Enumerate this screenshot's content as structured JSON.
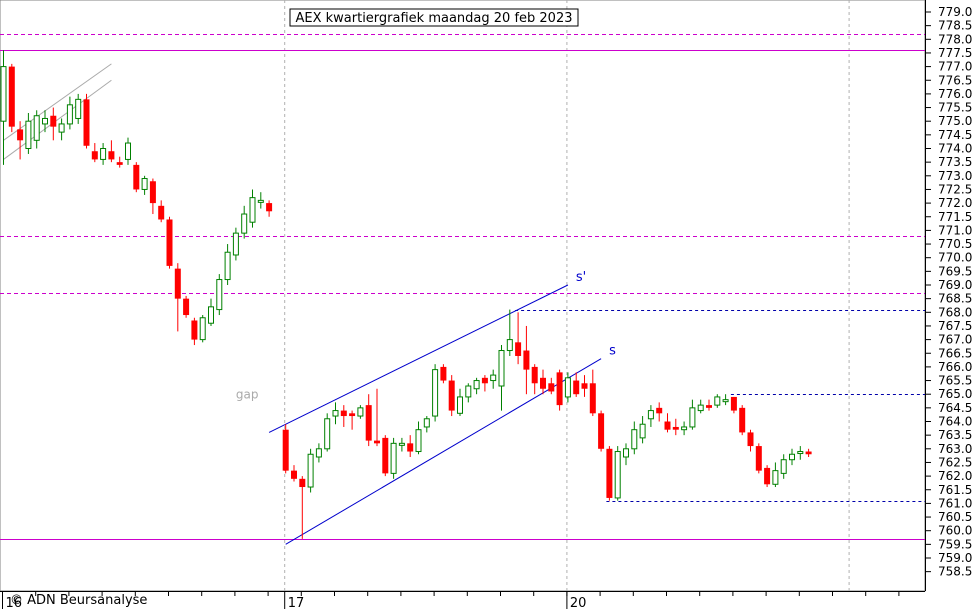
{
  "chart_data": {
    "type": "candlestick",
    "title": "AEX kwartiergrafiek maandag 20 feb 2023",
    "watermark": "© ADN Beursanalyse",
    "ylim": [
      758.0,
      779.5
    ],
    "y_ticks": [
      "779.0",
      "778.5",
      "778.0",
      "777.5",
      "777.0",
      "776.5",
      "776.0",
      "775.5",
      "775.0",
      "774.5",
      "774.0",
      "773.5",
      "773.0",
      "772.5",
      "772.0",
      "771.5",
      "771.0",
      "770.5",
      "770.0",
      "769.5",
      "769.0",
      "768.5",
      "768.0",
      "767.5",
      "767.0",
      "766.5",
      "766.0",
      "765.5",
      "765.0",
      "764.5",
      "764.0",
      "763.5",
      "763.0",
      "762.5",
      "762.0",
      "761.5",
      "761.0",
      "760.5",
      "760.0",
      "759.5",
      "759.0",
      "758.5"
    ],
    "x_labels": [
      {
        "label": "16",
        "index": 0
      },
      {
        "label": "17",
        "index": 34
      },
      {
        "label": "20",
        "index": 68
      }
    ],
    "up_color": "#008000",
    "down_color": "#ff0000",
    "horizontal_levels": [
      {
        "value": 777.6,
        "style": "solid",
        "color": "#cc00cc"
      },
      {
        "value": 759.7,
        "style": "solid",
        "color": "#cc00cc"
      },
      {
        "value": 778.2,
        "style": "dashed",
        "color": "#cc00cc"
      },
      {
        "value": 770.8,
        "style": "dashed",
        "color": "#cc00cc"
      },
      {
        "value": 768.7,
        "style": "dashed",
        "color": "#cc00cc"
      }
    ],
    "partial_levels": [
      {
        "value": 768.1,
        "from_index": 62,
        "color": "#0000aa"
      },
      {
        "value": 765.0,
        "from_index": 88,
        "color": "#0000aa"
      },
      {
        "value": 761.1,
        "from_index": 73,
        "color": "#0000aa"
      }
    ],
    "trendlines": [
      {
        "from": [
          0,
          773.6
        ],
        "to": [
          13,
          776.5
        ],
        "color": "#aaaaaa"
      },
      {
        "from": [
          0,
          774.3
        ],
        "to": [
          13,
          777.1
        ],
        "color": "#aaaaaa"
      },
      {
        "from": [
          32,
          763.6
        ],
        "to": [
          68,
          769.0
        ],
        "color": "#0000cc",
        "label": "s'"
      },
      {
        "from": [
          34,
          759.5
        ],
        "to": [
          72,
          766.3
        ],
        "color": "#0000cc",
        "label": "s"
      }
    ],
    "annotations": [
      {
        "text": "gap",
        "index": 28,
        "value": 765.2,
        "color": "#aaaaaa"
      }
    ],
    "candles": [
      {
        "i": 0,
        "o": 775.0,
        "h": 777.6,
        "l": 773.4,
        "c": 777.0
      },
      {
        "i": 1,
        "o": 777.0,
        "h": 777.1,
        "l": 774.6,
        "c": 774.8
      },
      {
        "i": 2,
        "o": 774.7,
        "h": 775.0,
        "l": 773.6,
        "c": 774.3
      },
      {
        "i": 3,
        "o": 774.0,
        "h": 775.3,
        "l": 773.8,
        "c": 775.0
      },
      {
        "i": 4,
        "o": 774.3,
        "h": 775.4,
        "l": 774.0,
        "c": 775.2
      },
      {
        "i": 5,
        "o": 774.9,
        "h": 775.4,
        "l": 774.6,
        "c": 775.1
      },
      {
        "i": 6,
        "o": 775.2,
        "h": 775.5,
        "l": 774.3,
        "c": 774.8
      },
      {
        "i": 7,
        "o": 774.6,
        "h": 775.1,
        "l": 774.3,
        "c": 774.9
      },
      {
        "i": 8,
        "o": 774.9,
        "h": 775.9,
        "l": 774.7,
        "c": 775.6
      },
      {
        "i": 9,
        "o": 775.1,
        "h": 776.0,
        "l": 774.9,
        "c": 775.8
      },
      {
        "i": 10,
        "o": 775.8,
        "h": 776.0,
        "l": 774.0,
        "c": 774.1
      },
      {
        "i": 11,
        "o": 773.9,
        "h": 774.2,
        "l": 773.5,
        "c": 773.6
      },
      {
        "i": 12,
        "o": 773.6,
        "h": 774.2,
        "l": 773.4,
        "c": 774.0
      },
      {
        "i": 13,
        "o": 773.9,
        "h": 774.3,
        "l": 773.5,
        "c": 773.6
      },
      {
        "i": 14,
        "o": 773.5,
        "h": 773.7,
        "l": 773.3,
        "c": 773.4
      },
      {
        "i": 15,
        "o": 773.6,
        "h": 774.4,
        "l": 773.4,
        "c": 774.2
      },
      {
        "i": 16,
        "o": 773.4,
        "h": 773.5,
        "l": 772.4,
        "c": 772.5
      },
      {
        "i": 17,
        "o": 772.5,
        "h": 773.0,
        "l": 772.3,
        "c": 772.9
      },
      {
        "i": 18,
        "o": 772.8,
        "h": 772.9,
        "l": 771.6,
        "c": 772.0
      },
      {
        "i": 19,
        "o": 771.9,
        "h": 772.1,
        "l": 771.3,
        "c": 771.4
      },
      {
        "i": 20,
        "o": 771.4,
        "h": 771.5,
        "l": 769.6,
        "c": 769.7
      },
      {
        "i": 21,
        "o": 769.6,
        "h": 769.8,
        "l": 767.3,
        "c": 768.5
      },
      {
        "i": 22,
        "o": 768.5,
        "h": 768.6,
        "l": 767.8,
        "c": 767.9
      },
      {
        "i": 23,
        "o": 767.7,
        "h": 767.8,
        "l": 766.8,
        "c": 767.0
      },
      {
        "i": 24,
        "o": 767.0,
        "h": 767.9,
        "l": 766.9,
        "c": 767.8
      },
      {
        "i": 25,
        "o": 767.6,
        "h": 768.5,
        "l": 767.5,
        "c": 768.2
      },
      {
        "i": 26,
        "o": 768.1,
        "h": 769.4,
        "l": 767.9,
        "c": 769.2
      },
      {
        "i": 27,
        "o": 769.2,
        "h": 770.5,
        "l": 769.0,
        "c": 770.2
      },
      {
        "i": 28,
        "o": 770.1,
        "h": 771.1,
        "l": 769.9,
        "c": 770.9
      },
      {
        "i": 29,
        "o": 770.9,
        "h": 771.9,
        "l": 770.7,
        "c": 771.6
      },
      {
        "i": 30,
        "o": 771.3,
        "h": 772.5,
        "l": 771.1,
        "c": 772.2
      },
      {
        "i": 31,
        "o": 772.1,
        "h": 772.4,
        "l": 771.8,
        "c": 772.1
      },
      {
        "i": 32,
        "o": 772.0,
        "h": 772.1,
        "l": 771.5,
        "c": 771.7
      },
      {
        "i": 34,
        "o": 763.7,
        "h": 763.9,
        "l": 762.1,
        "c": 762.2
      },
      {
        "i": 35,
        "o": 762.2,
        "h": 762.4,
        "l": 761.8,
        "c": 761.9
      },
      {
        "i": 36,
        "o": 761.9,
        "h": 762.0,
        "l": 759.7,
        "c": 761.6
      },
      {
        "i": 37,
        "o": 761.6,
        "h": 763.0,
        "l": 761.4,
        "c": 762.8
      },
      {
        "i": 38,
        "o": 762.7,
        "h": 763.2,
        "l": 762.5,
        "c": 763.0
      },
      {
        "i": 39,
        "o": 763.0,
        "h": 764.3,
        "l": 762.9,
        "c": 764.1
      },
      {
        "i": 40,
        "o": 764.2,
        "h": 764.7,
        "l": 763.9,
        "c": 764.4
      },
      {
        "i": 41,
        "o": 764.4,
        "h": 764.6,
        "l": 763.8,
        "c": 764.2
      },
      {
        "i": 42,
        "o": 764.3,
        "h": 764.4,
        "l": 763.7,
        "c": 764.2
      },
      {
        "i": 43,
        "o": 764.2,
        "h": 764.6,
        "l": 764.1,
        "c": 764.5
      },
      {
        "i": 44,
        "o": 764.6,
        "h": 765.0,
        "l": 763.1,
        "c": 763.3
      },
      {
        "i": 45,
        "o": 763.3,
        "h": 765.2,
        "l": 763.1,
        "c": 763.2
      },
      {
        "i": 46,
        "o": 763.4,
        "h": 763.5,
        "l": 762.0,
        "c": 762.1
      },
      {
        "i": 47,
        "o": 762.1,
        "h": 763.4,
        "l": 761.9,
        "c": 763.2
      },
      {
        "i": 48,
        "o": 763.2,
        "h": 763.4,
        "l": 762.9,
        "c": 763.2
      },
      {
        "i": 49,
        "o": 763.2,
        "h": 763.5,
        "l": 762.7,
        "c": 762.9
      },
      {
        "i": 50,
        "o": 762.9,
        "h": 764.0,
        "l": 762.8,
        "c": 763.7
      },
      {
        "i": 51,
        "o": 763.8,
        "h": 764.2,
        "l": 763.6,
        "c": 764.1
      },
      {
        "i": 52,
        "o": 764.2,
        "h": 766.1,
        "l": 764.0,
        "c": 765.9
      },
      {
        "i": 53,
        "o": 766.0,
        "h": 766.1,
        "l": 765.4,
        "c": 765.5
      },
      {
        "i": 54,
        "o": 765.5,
        "h": 765.7,
        "l": 764.2,
        "c": 764.4
      },
      {
        "i": 55,
        "o": 764.3,
        "h": 765.2,
        "l": 764.2,
        "c": 764.9
      },
      {
        "i": 56,
        "o": 764.9,
        "h": 765.4,
        "l": 764.7,
        "c": 765.3
      },
      {
        "i": 57,
        "o": 765.2,
        "h": 765.6,
        "l": 765.0,
        "c": 765.5
      },
      {
        "i": 58,
        "o": 765.6,
        "h": 765.7,
        "l": 765.1,
        "c": 765.4
      },
      {
        "i": 59,
        "o": 765.5,
        "h": 765.9,
        "l": 765.2,
        "c": 765.7
      },
      {
        "i": 60,
        "o": 765.3,
        "h": 766.8,
        "l": 764.4,
        "c": 766.6
      },
      {
        "i": 61,
        "o": 766.6,
        "h": 768.1,
        "l": 766.4,
        "c": 767.0
      },
      {
        "i": 62,
        "o": 766.9,
        "h": 768.0,
        "l": 766.1,
        "c": 766.4
      },
      {
        "i": 63,
        "o": 766.6,
        "h": 767.5,
        "l": 765.0,
        "c": 765.9
      },
      {
        "i": 64,
        "o": 766.0,
        "h": 766.1,
        "l": 765.0,
        "c": 765.4
      },
      {
        "i": 65,
        "o": 765.6,
        "h": 765.9,
        "l": 765.0,
        "c": 765.2
      },
      {
        "i": 66,
        "o": 765.4,
        "h": 765.6,
        "l": 765.0,
        "c": 765.1
      },
      {
        "i": 67,
        "o": 765.8,
        "h": 765.9,
        "l": 764.4,
        "c": 764.6
      },
      {
        "i": 68,
        "o": 764.9,
        "h": 765.8,
        "l": 764.7,
        "c": 765.6
      },
      {
        "i": 69,
        "o": 765.5,
        "h": 765.8,
        "l": 764.9,
        "c": 765.0
      },
      {
        "i": 70,
        "o": 765.4,
        "h": 765.7,
        "l": 764.9,
        "c": 765.2
      },
      {
        "i": 71,
        "o": 765.4,
        "h": 765.9,
        "l": 764.2,
        "c": 764.3
      },
      {
        "i": 72,
        "o": 764.3,
        "h": 764.4,
        "l": 762.9,
        "c": 763.0
      },
      {
        "i": 73,
        "o": 763.0,
        "h": 763.1,
        "l": 761.1,
        "c": 761.2
      },
      {
        "i": 74,
        "o": 761.2,
        "h": 763.1,
        "l": 761.1,
        "c": 762.9
      },
      {
        "i": 75,
        "o": 762.7,
        "h": 763.2,
        "l": 762.4,
        "c": 763.0
      },
      {
        "i": 76,
        "o": 763.0,
        "h": 764.0,
        "l": 762.8,
        "c": 763.7
      },
      {
        "i": 77,
        "o": 763.4,
        "h": 764.2,
        "l": 763.2,
        "c": 763.9
      },
      {
        "i": 78,
        "o": 764.1,
        "h": 764.6,
        "l": 763.8,
        "c": 764.4
      },
      {
        "i": 79,
        "o": 764.5,
        "h": 764.7,
        "l": 764.0,
        "c": 764.3
      },
      {
        "i": 80,
        "o": 764.0,
        "h": 764.3,
        "l": 763.6,
        "c": 763.7
      },
      {
        "i": 81,
        "o": 763.8,
        "h": 764.1,
        "l": 763.5,
        "c": 763.7
      },
      {
        "i": 82,
        "o": 763.7,
        "h": 764.0,
        "l": 763.5,
        "c": 763.8
      },
      {
        "i": 83,
        "o": 763.8,
        "h": 764.8,
        "l": 763.7,
        "c": 764.5
      },
      {
        "i": 84,
        "o": 764.4,
        "h": 764.8,
        "l": 764.3,
        "c": 764.6
      },
      {
        "i": 85,
        "o": 764.6,
        "h": 764.8,
        "l": 764.4,
        "c": 764.5
      },
      {
        "i": 86,
        "o": 764.6,
        "h": 765.0,
        "l": 764.5,
        "c": 764.9
      },
      {
        "i": 87,
        "o": 764.8,
        "h": 765.0,
        "l": 764.6,
        "c": 764.8
      },
      {
        "i": 88,
        "o": 764.9,
        "h": 764.9,
        "l": 764.3,
        "c": 764.4
      },
      {
        "i": 89,
        "o": 764.5,
        "h": 764.6,
        "l": 763.5,
        "c": 763.6
      },
      {
        "i": 90,
        "o": 763.6,
        "h": 763.7,
        "l": 762.9,
        "c": 763.1
      },
      {
        "i": 91,
        "o": 763.1,
        "h": 763.2,
        "l": 762.1,
        "c": 762.2
      },
      {
        "i": 92,
        "o": 762.3,
        "h": 762.4,
        "l": 761.6,
        "c": 761.7
      },
      {
        "i": 93,
        "o": 761.7,
        "h": 762.5,
        "l": 761.6,
        "c": 762.2
      },
      {
        "i": 94,
        "o": 762.1,
        "h": 762.8,
        "l": 761.9,
        "c": 762.6
      },
      {
        "i": 95,
        "o": 762.6,
        "h": 763.0,
        "l": 762.4,
        "c": 762.8
      },
      {
        "i": 96,
        "o": 762.9,
        "h": 763.1,
        "l": 762.6,
        "c": 762.9
      },
      {
        "i": 97,
        "o": 762.9,
        "h": 763.0,
        "l": 762.7,
        "c": 762.8
      }
    ]
  }
}
